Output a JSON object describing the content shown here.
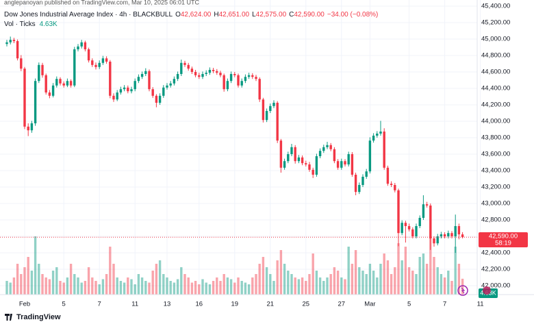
{
  "publisher": "anglepanoyan published on TradingView.com, Mar 10, 2025 06:01 UTC",
  "brand": "TradingView",
  "chart_data": {
    "type": "candlestick",
    "title": "Dow Jones Industrial Average Index · 4h · BLACKBULL",
    "ohlc_labels": {
      "o": "O",
      "open": "42,624.00",
      "h": "H",
      "high": "42,651.00",
      "l": "L",
      "low": "42,575.00",
      "c": "C",
      "close": "42,590.00",
      "change": "−34.00 (−0.08%)"
    },
    "volume_title": "Vol · Ticks",
    "volume_label": "4.63K",
    "last_price_label": "42,590.00",
    "countdown": "58:19",
    "up_color": "#089981",
    "down_color": "#f23645",
    "grid": true,
    "ylim": [
      41900,
      45475
    ],
    "yticks": [
      {
        "value": 42000,
        "label": "42,000.00"
      },
      {
        "value": 42200,
        "label": "42,200.00"
      },
      {
        "value": 42400,
        "label": "42,400.00"
      },
      {
        "value": 42600,
        "label": "42,600.00"
      },
      {
        "value": 42800,
        "label": "42,800.00"
      },
      {
        "value": 43000,
        "label": "43,000.00"
      },
      {
        "value": 43200,
        "label": "43,200.00"
      },
      {
        "value": 43400,
        "label": "43,400.00"
      },
      {
        "value": 43600,
        "label": "43,600.00"
      },
      {
        "value": 43800,
        "label": "43,800.00"
      },
      {
        "value": 44000,
        "label": "44,000.00"
      },
      {
        "value": 44200,
        "label": "44,200.00"
      },
      {
        "value": 44400,
        "label": "44,400.00"
      },
      {
        "value": 44600,
        "label": "44,600.00"
      },
      {
        "value": 44800,
        "label": "44,800.00"
      },
      {
        "value": 45000,
        "label": "45,000.00"
      },
      {
        "value": 45200,
        "label": "45,200.00"
      },
      {
        "value": 45400,
        "label": "45,400.00"
      }
    ],
    "categories": [
      null,
      null,
      null,
      null,
      null,
      "Feb",
      null,
      null,
      null,
      null,
      null,
      null,
      null,
      null,
      null,
      null,
      "5",
      null,
      null,
      null,
      null,
      null,
      null,
      null,
      null,
      null,
      "7",
      null,
      null,
      null,
      null,
      null,
      null,
      null,
      null,
      null,
      "11",
      null,
      null,
      null,
      null,
      null,
      null,
      null,
      null,
      "13",
      null,
      null,
      null,
      null,
      null,
      null,
      null,
      null,
      "16",
      null,
      null,
      null,
      null,
      null,
      null,
      null,
      null,
      null,
      "19",
      null,
      null,
      null,
      null,
      null,
      null,
      null,
      null,
      null,
      "21",
      null,
      null,
      null,
      null,
      null,
      null,
      null,
      null,
      null,
      "25",
      null,
      null,
      null,
      null,
      null,
      null,
      null,
      null,
      null,
      "27",
      null,
      null,
      null,
      null,
      null,
      null,
      null,
      "Mar",
      null,
      null,
      null,
      null,
      null,
      null,
      null,
      null,
      null,
      null,
      "5",
      null,
      null,
      null,
      null,
      null,
      null,
      null,
      null,
      null,
      "7",
      null,
      null,
      null,
      null,
      null,
      null,
      null,
      null,
      null,
      "11",
      null
    ],
    "open": [
      44940,
      44960,
      44990,
      44975,
      44765,
      44640,
      43935,
      43890,
      43975,
      44490,
      44685,
      44560,
      44350,
      44310,
      44435,
      44515,
      44460,
      44435,
      44490,
      44435,
      44875,
      44910,
      44960,
      44875,
      44740,
      44685,
      44660,
      44710,
      44765,
      44725,
      44310,
      44265,
      44350,
      44390,
      44410,
      44365,
      44390,
      44490,
      44540,
      44575,
      44610,
      44390,
      44310,
      44225,
      44310,
      44410,
      44435,
      44460,
      44515,
      44575,
      44710,
      44685,
      44640,
      44600,
      44560,
      44540,
      44575,
      44590,
      44625,
      44610,
      44590,
      44560,
      44390,
      44490,
      44575,
      44560,
      44435,
      44490,
      44540,
      44560,
      44540,
      44515,
      44265,
      44015,
      44125,
      44185,
      44225,
      43765,
      43435,
      43515,
      43600,
      43685,
      43515,
      43560,
      43490,
      43475,
      43410,
      43350,
      43575,
      43640,
      43685,
      43710,
      43660,
      43515,
      43435,
      43515,
      43475,
      43600,
      43350,
      43140,
      43225,
      43325,
      43390,
      43765,
      43825,
      43850,
      43875,
      43435,
      43240,
      43225,
      43160,
      42640,
      42765,
      42725,
      42685,
      42600,
      42725,
      42825,
      42990,
      42975,
      42575,
      42515,
      42600,
      42625,
      42600,
      42640,
      42600,
      42725,
      42624,
      null,
      null,
      null,
      null,
      null,
      null
    ],
    "high": [
      44990,
      45030,
      45015,
      44995,
      44805,
      44660,
      43975,
      44005,
      44520,
      44715,
      44710,
      44580,
      44380,
      44465,
      44545,
      44535,
      44485,
      44520,
      44510,
      44905,
      44940,
      44990,
      44980,
      44895,
      44765,
      44715,
      44740,
      44795,
      44790,
      44745,
      44340,
      44380,
      44420,
      44440,
      44435,
      44420,
      44520,
      44570,
      44605,
      44645,
      44630,
      44415,
      44330,
      44340,
      44440,
      44465,
      44490,
      44545,
      44605,
      44750,
      44735,
      44710,
      44665,
      44625,
      44590,
      44605,
      44620,
      44655,
      44650,
      44635,
      44615,
      44580,
      44520,
      44605,
      44600,
      44580,
      44520,
      44570,
      44590,
      44585,
      44565,
      44535,
      44285,
      44155,
      44215,
      44255,
      44245,
      43785,
      43545,
      43630,
      43725,
      43710,
      43590,
      43585,
      43520,
      43505,
      43435,
      43605,
      43670,
      43715,
      43750,
      43735,
      43685,
      43540,
      43545,
      43540,
      43630,
      43625,
      43375,
      43255,
      43355,
      43420,
      43805,
      43855,
      43880,
      44005,
      43915,
      43460,
      43270,
      43250,
      43180,
      42795,
      42790,
      42755,
      42710,
      42755,
      42855,
      43100,
      43020,
      43000,
      42600,
      42630,
      42655,
      42650,
      42670,
      42665,
      42865,
      42755,
      42651,
      null,
      null,
      null,
      null,
      null,
      null
    ],
    "low": [
      44910,
      44935,
      44950,
      44740,
      44610,
      43905,
      43820,
      43860,
      43945,
      44465,
      44530,
      44325,
      44280,
      44290,
      44410,
      44435,
      44410,
      44415,
      44410,
      44415,
      44850,
      44885,
      44850,
      44715,
      44660,
      44630,
      44635,
      44685,
      44700,
      44280,
      44235,
      44245,
      44325,
      44365,
      44340,
      44340,
      44365,
      44465,
      44515,
      44550,
      44365,
      44285,
      44170,
      44200,
      44285,
      44385,
      44410,
      44435,
      44490,
      44550,
      44660,
      44615,
      44575,
      44535,
      44515,
      44515,
      44550,
      44565,
      44585,
      44565,
      44535,
      44360,
      44365,
      44465,
      44535,
      44410,
      44410,
      44465,
      44515,
      44515,
      44490,
      44235,
      43985,
      43990,
      44100,
      44160,
      43735,
      43375,
      43410,
      43490,
      43575,
      43485,
      43490,
      43465,
      43450,
      43385,
      43310,
      43325,
      43550,
      43615,
      43660,
      43635,
      43490,
      43410,
      43410,
      43450,
      43450,
      43325,
      43100,
      43115,
      43200,
      43300,
      43365,
      43740,
      43800,
      43825,
      43410,
      43215,
      43200,
      43135,
      42480,
      42615,
      42525,
      42660,
      42575,
      42575,
      42700,
      42800,
      42950,
      42435,
      42475,
      42490,
      42575,
      42575,
      42575,
      42575,
      42400,
      42564,
      42575,
      null,
      null,
      null,
      null,
      null,
      null
    ],
    "close": [
      44960,
      44990,
      44975,
      44765,
      44640,
      43935,
      43890,
      43975,
      44490,
      44685,
      44560,
      44350,
      44310,
      44435,
      44515,
      44460,
      44435,
      44490,
      44435,
      44875,
      44910,
      44960,
      44875,
      44740,
      44685,
      44660,
      44710,
      44765,
      44725,
      44310,
      44265,
      44350,
      44390,
      44410,
      44365,
      44390,
      44490,
      44540,
      44575,
      44610,
      44390,
      44310,
      44225,
      44310,
      44410,
      44435,
      44460,
      44515,
      44575,
      44710,
      44685,
      44640,
      44600,
      44560,
      44540,
      44575,
      44590,
      44625,
      44610,
      44590,
      44560,
      44390,
      44490,
      44575,
      44560,
      44435,
      44490,
      44540,
      44560,
      44540,
      44515,
      44265,
      44015,
      44125,
      44185,
      44225,
      43765,
      43435,
      43515,
      43600,
      43685,
      43515,
      43560,
      43490,
      43475,
      43410,
      43350,
      43575,
      43640,
      43685,
      43710,
      43660,
      43515,
      43435,
      43515,
      43475,
      43600,
      43350,
      43140,
      43225,
      43325,
      43390,
      43765,
      43825,
      43850,
      43875,
      43435,
      43240,
      43225,
      43160,
      42640,
      42765,
      42725,
      42685,
      42600,
      42725,
      42825,
      42990,
      42975,
      42575,
      42515,
      42600,
      42625,
      42600,
      42640,
      42600,
      42725,
      42624,
      42590,
      null,
      null,
      null,
      null,
      null,
      null
    ],
    "volume": [
      4000,
      3500,
      5000,
      9000,
      6000,
      8000,
      11000,
      7000,
      17000,
      9000,
      6000,
      5000,
      4500,
      7000,
      8000,
      4000,
      3500,
      5000,
      9000,
      6000,
      5000,
      3500,
      4000,
      8000,
      5000,
      4000,
      3000,
      4500,
      6000,
      14000,
      9000,
      5000,
      4000,
      3500,
      5000,
      4500,
      3000,
      6000,
      5000,
      4000,
      3500,
      7000,
      9000,
      10000,
      6000,
      5000,
      4000,
      3500,
      4500,
      8000,
      6000,
      5000,
      3500,
      4000,
      3000,
      4500,
      3500,
      3000,
      4000,
      5000,
      4000,
      6000,
      5000,
      4500,
      3500,
      5000,
      4000,
      3500,
      3000,
      5000,
      6000,
      9000,
      11000,
      8000,
      6000,
      4000,
      10000,
      13000,
      9000,
      7000,
      6000,
      5000,
      4500,
      5000,
      4000,
      6000,
      12000,
      7000,
      5000,
      4000,
      5000,
      6000,
      8000,
      7000,
      5000,
      4500,
      14000,
      9000,
      13000,
      8000,
      7000,
      6000,
      9000,
      7000,
      5000,
      9000,
      12000,
      10000,
      6000,
      8000,
      15000,
      10000,
      14000,
      8000,
      7000,
      6000,
      11000,
      12000,
      9000,
      17000,
      11000,
      8000,
      6000,
      5000,
      7000,
      4000,
      14000,
      9000,
      4630,
      null,
      null,
      null,
      null,
      null,
      null
    ]
  }
}
